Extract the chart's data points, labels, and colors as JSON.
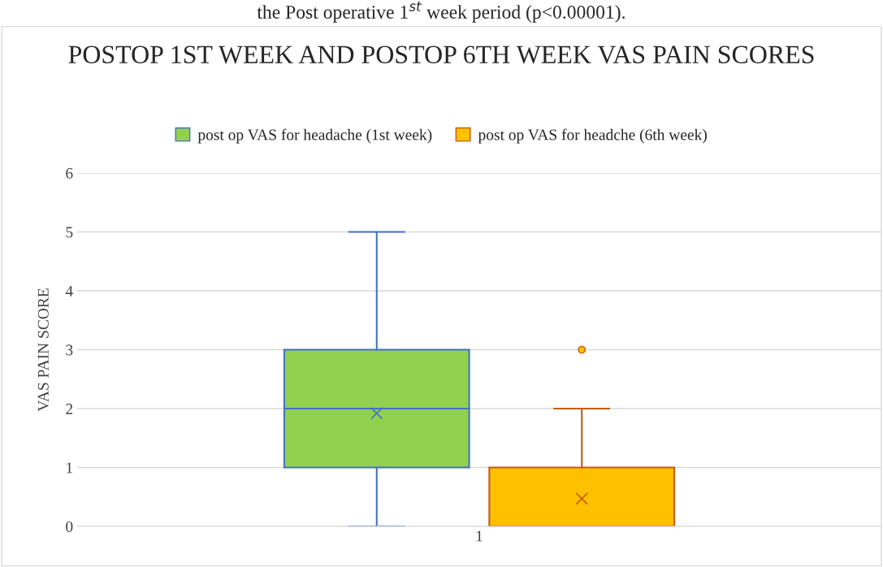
{
  "chart_data": {
    "type": "box",
    "title": "POSTOP 1ST WEEK AND POSTOP 6TH WEEK VAS PAIN SCORES",
    "ylabel": "VAS PAIN SCORE",
    "annotations": [
      "the Post operative 1$^{st}$ week period (p<0.00001)."
    ],
    "categories": [
      "1"
    ],
    "series": [
      {
        "name": "post op VAS for headache (1st week)",
        "color": "#92d050",
        "boxes": [
          {
            "low": 0,
            "q1": 1,
            "median": 2,
            "q3": 3,
            "high": 5,
            "mean": 1.92
          }
        ]
      },
      {
        "name": "post op VAS for headche (6th week)",
        "color": "#ffc000",
        "boxes": [
          {
            "low": 0,
            "q1": 0,
            "median": 0,
            "q3": 1,
            "high": 2,
            "mean": 0.47,
            "outliers": [
              3
            ]
          }
        ]
      }
    ],
    "ylim": [
      0,
      6
    ],
    "yticks": [
      0,
      1,
      2,
      3,
      4,
      5,
      6
    ],
    "grid": "y",
    "legend": "top"
  }
}
